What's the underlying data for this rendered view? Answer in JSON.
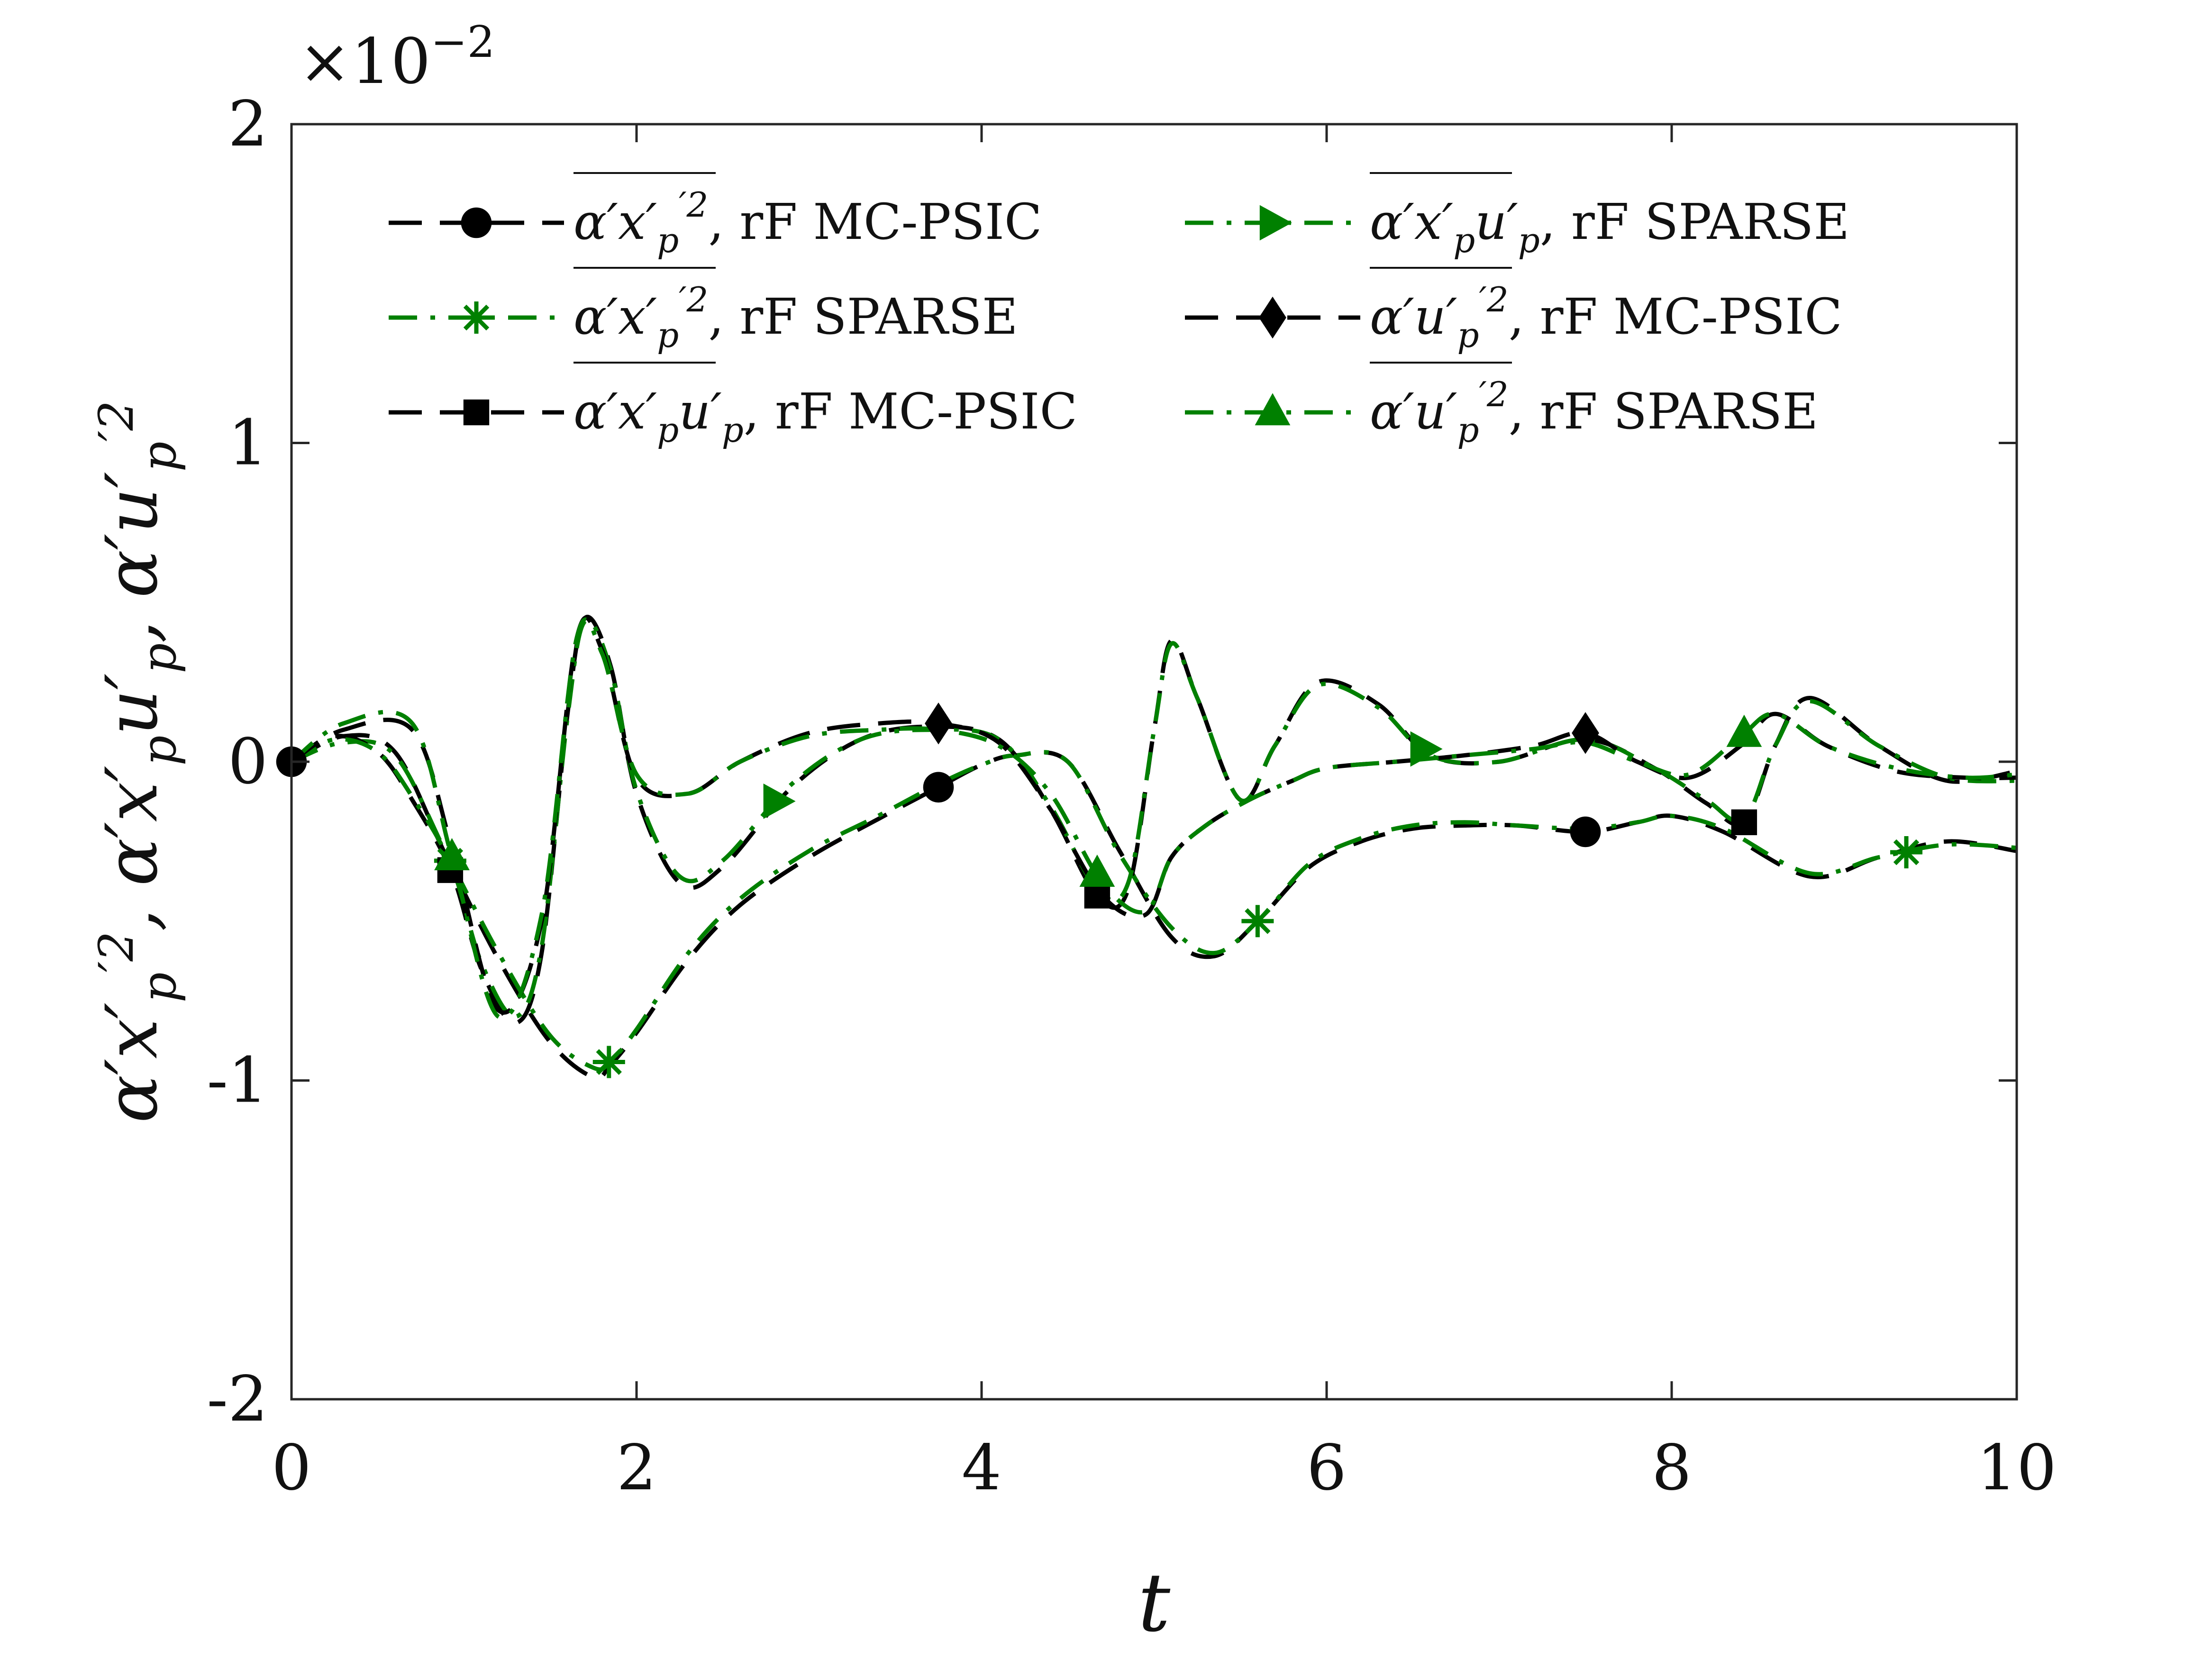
{
  "chart_data": {
    "type": "line",
    "xlabel": "t",
    "ylabel": "α′x′p², α′x′pu′p, α′u′p²",
    "ylabel_parts": [
      "α′x′",
      "p",
      "′2",
      ",  α′x′",
      "p",
      "u′",
      "p",
      ",  α′u′",
      "p",
      "′2"
    ],
    "xlim": [
      0,
      10
    ],
    "ylim": [
      -2,
      2
    ],
    "y_multiplier": "×10",
    "y_multiplier_exp": "−2",
    "xticks": [
      0,
      2,
      4,
      6,
      8,
      10
    ],
    "xtick_labels": [
      "0",
      "2",
      "4",
      "6",
      "8",
      "10"
    ],
    "yticks": [
      -2,
      -1,
      0,
      1,
      2
    ],
    "ytick_labels": [
      "-2",
      "-1",
      "0",
      "1",
      "2"
    ],
    "legend_position": "top",
    "colors": {
      "mc": "#000000",
      "sparse": "#008000"
    },
    "series": [
      {
        "legend_sym": "α′x′",
        "legend_sub": "p",
        "legend_sup": "′2",
        "legend_tail": ", rF MC-PSIC",
        "color": "#000000",
        "dash": "dashed",
        "marker": "circle",
        "x": [
          0,
          0.3,
          0.6,
          0.9,
          1.2,
          1.5,
          1.75,
          1.85,
          2.0,
          2.3,
          2.6,
          3.0,
          3.4,
          3.75,
          4.0,
          4.2,
          4.5,
          4.8,
          5.1,
          5.35,
          5.6,
          5.9,
          6.2,
          6.5,
          6.8,
          7.1,
          7.5,
          7.8,
          8.0,
          8.3,
          8.8,
          9.2,
          9.6,
          10
        ],
        "y": [
          0,
          0.08,
          0.03,
          -0.3,
          -0.62,
          -0.88,
          -0.99,
          -0.95,
          -0.85,
          -0.62,
          -0.45,
          -0.3,
          -0.18,
          -0.08,
          -0.01,
          0.02,
          0.0,
          -0.28,
          -0.55,
          -0.61,
          -0.5,
          -0.33,
          -0.25,
          -0.21,
          -0.2,
          -0.2,
          -0.22,
          -0.19,
          -0.17,
          -0.22,
          -0.36,
          -0.3,
          -0.25,
          -0.28
        ],
        "markers_x": [
          0,
          3.75,
          7.5
        ]
      },
      {
        "legend_sym": "α′x′",
        "legend_sub": "p",
        "legend_sup": "′2",
        "legend_tail": ", rF SPARSE",
        "color": "#008000",
        "dash": "dashdot",
        "marker": "asterisk",
        "x": [
          0,
          0.3,
          0.6,
          0.9,
          1.2,
          1.5,
          1.75,
          1.85,
          2.0,
          2.3,
          2.6,
          3.0,
          3.4,
          3.75,
          4.0,
          4.2,
          4.5,
          4.8,
          5.1,
          5.35,
          5.6,
          5.9,
          6.2,
          6.5,
          6.8,
          7.1,
          7.5,
          7.8,
          8.0,
          8.3,
          8.8,
          9.2,
          9.6,
          10
        ],
        "y": [
          0,
          0.06,
          0.02,
          -0.29,
          -0.6,
          -0.86,
          -0.96,
          -0.94,
          -0.84,
          -0.6,
          -0.43,
          -0.28,
          -0.17,
          -0.07,
          -0.01,
          0.02,
          0.0,
          -0.29,
          -0.52,
          -0.6,
          -0.5,
          -0.32,
          -0.24,
          -0.2,
          -0.19,
          -0.2,
          -0.21,
          -0.19,
          -0.17,
          -0.21,
          -0.35,
          -0.3,
          -0.26,
          -0.27
        ],
        "markers_x": [
          0.92,
          1.84,
          5.6,
          9.36
        ]
      },
      {
        "legend_sym": "α′x′",
        "legend_sub": "p",
        "legend_sup": "u′",
        "legend_sub2": "p",
        "legend_tail": ", rF MC-PSIC",
        "color": "#000000",
        "dash": "dashed",
        "marker": "square",
        "x": [
          0,
          0.25,
          0.5,
          0.7,
          0.93,
          1.1,
          1.3,
          1.45,
          1.6,
          1.7,
          1.85,
          2.0,
          2.25,
          2.5,
          2.9,
          3.3,
          3.7,
          4.1,
          4.4,
          4.67,
          4.85,
          5.0,
          5.1,
          5.25,
          5.5,
          5.7,
          5.95,
          6.3,
          6.6,
          7.0,
          7.5,
          7.9,
          8.2,
          8.42,
          8.6,
          8.8,
          9.2,
          9.6,
          10
        ],
        "y": [
          0,
          0.08,
          0.03,
          -0.12,
          -0.35,
          -0.65,
          -0.82,
          -0.6,
          0.15,
          0.45,
          0.3,
          -0.1,
          -0.38,
          -0.33,
          -0.08,
          0.07,
          0.11,
          0.07,
          -0.15,
          -0.42,
          -0.4,
          0.1,
          0.38,
          0.2,
          -0.12,
          0.05,
          0.25,
          0.18,
          0.02,
          0.0,
          0.07,
          -0.02,
          -0.13,
          -0.19,
          0.05,
          0.2,
          0.05,
          -0.06,
          -0.03
        ],
        "markers_x": [
          0.92,
          4.67,
          8.42
        ]
      },
      {
        "legend_sym": "α′x′",
        "legend_sub": "p",
        "legend_sup": "u′",
        "legend_sub2": "p",
        "legend_tail": ", rF SPARSE",
        "color": "#008000",
        "dash": "dashdot",
        "marker": "triangle-right",
        "x": [
          0,
          0.25,
          0.5,
          0.7,
          0.93,
          1.1,
          1.3,
          1.45,
          1.6,
          1.7,
          1.85,
          2.0,
          2.25,
          2.5,
          2.9,
          3.3,
          3.7,
          4.1,
          4.4,
          4.67,
          4.85,
          5.0,
          5.1,
          5.25,
          5.5,
          5.7,
          5.95,
          6.3,
          6.6,
          7.0,
          7.5,
          7.9,
          8.2,
          8.42,
          8.6,
          8.8,
          9.2,
          9.6,
          10
        ],
        "y": [
          0,
          0.07,
          0.03,
          -0.11,
          -0.33,
          -0.63,
          -0.8,
          -0.58,
          0.14,
          0.44,
          0.29,
          -0.09,
          -0.36,
          -0.31,
          -0.07,
          0.07,
          0.1,
          0.07,
          -0.14,
          -0.4,
          -0.38,
          0.1,
          0.37,
          0.2,
          -0.12,
          0.05,
          0.24,
          0.17,
          0.02,
          0.0,
          0.07,
          -0.02,
          -0.12,
          -0.18,
          0.05,
          0.19,
          0.05,
          -0.05,
          -0.06
        ],
        "markers_x": [
          2.81,
          6.56
        ]
      },
      {
        "legend_sym": "α′u′",
        "legend_sub": "p",
        "legend_sup": "′2",
        "legend_tail": ", rF MC-PSIC",
        "color": "#000000",
        "dash": "dashed",
        "marker": "diamond",
        "x": [
          0,
          0.3,
          0.7,
          0.93,
          1.2,
          1.45,
          1.65,
          1.8,
          2.0,
          2.3,
          2.6,
          3.0,
          3.4,
          3.75,
          4.1,
          4.4,
          4.7,
          4.95,
          5.1,
          5.3,
          5.55,
          5.8,
          6.0,
          6.4,
          6.8,
          7.2,
          7.5,
          7.8,
          8.1,
          8.4,
          8.6,
          8.9,
          9.3,
          9.7,
          10
        ],
        "y": [
          0,
          0.1,
          0.1,
          -0.27,
          -0.78,
          -0.5,
          0.38,
          0.35,
          -0.05,
          -0.1,
          0.0,
          0.09,
          0.12,
          0.12,
          0.06,
          -0.15,
          -0.42,
          -0.48,
          -0.3,
          -0.2,
          -0.12,
          -0.06,
          -0.02,
          0.0,
          0.02,
          0.05,
          0.09,
          0.0,
          -0.05,
          0.05,
          0.15,
          0.05,
          -0.03,
          -0.05,
          -0.05
        ],
        "markers_x": [
          3.75,
          7.5
        ]
      },
      {
        "legend_sym": "α′u′",
        "legend_sub": "p",
        "legend_sup": "′2",
        "legend_tail": ", rF SPARSE",
        "color": "#008000",
        "dash": "dashdot",
        "marker": "triangle-up",
        "x": [
          0,
          0.3,
          0.7,
          0.93,
          1.2,
          1.45,
          1.65,
          1.8,
          2.0,
          2.3,
          2.6,
          3.0,
          3.4,
          3.75,
          4.1,
          4.4,
          4.7,
          4.95,
          5.1,
          5.3,
          5.55,
          5.8,
          6.0,
          6.4,
          6.8,
          7.2,
          7.5,
          7.8,
          8.1,
          8.4,
          8.6,
          8.9,
          9.3,
          9.7,
          10
        ],
        "y": [
          0,
          0.12,
          0.12,
          -0.3,
          -0.8,
          -0.48,
          0.38,
          0.34,
          -0.04,
          -0.1,
          0.0,
          0.08,
          0.1,
          0.1,
          0.05,
          -0.1,
          -0.38,
          -0.47,
          -0.3,
          -0.2,
          -0.12,
          -0.06,
          -0.02,
          0.0,
          0.02,
          0.04,
          0.06,
          0.0,
          -0.04,
          0.08,
          0.15,
          0.05,
          -0.02,
          -0.05,
          -0.04
        ],
        "markers_x": [
          0.93,
          4.67,
          8.42
        ]
      }
    ]
  }
}
